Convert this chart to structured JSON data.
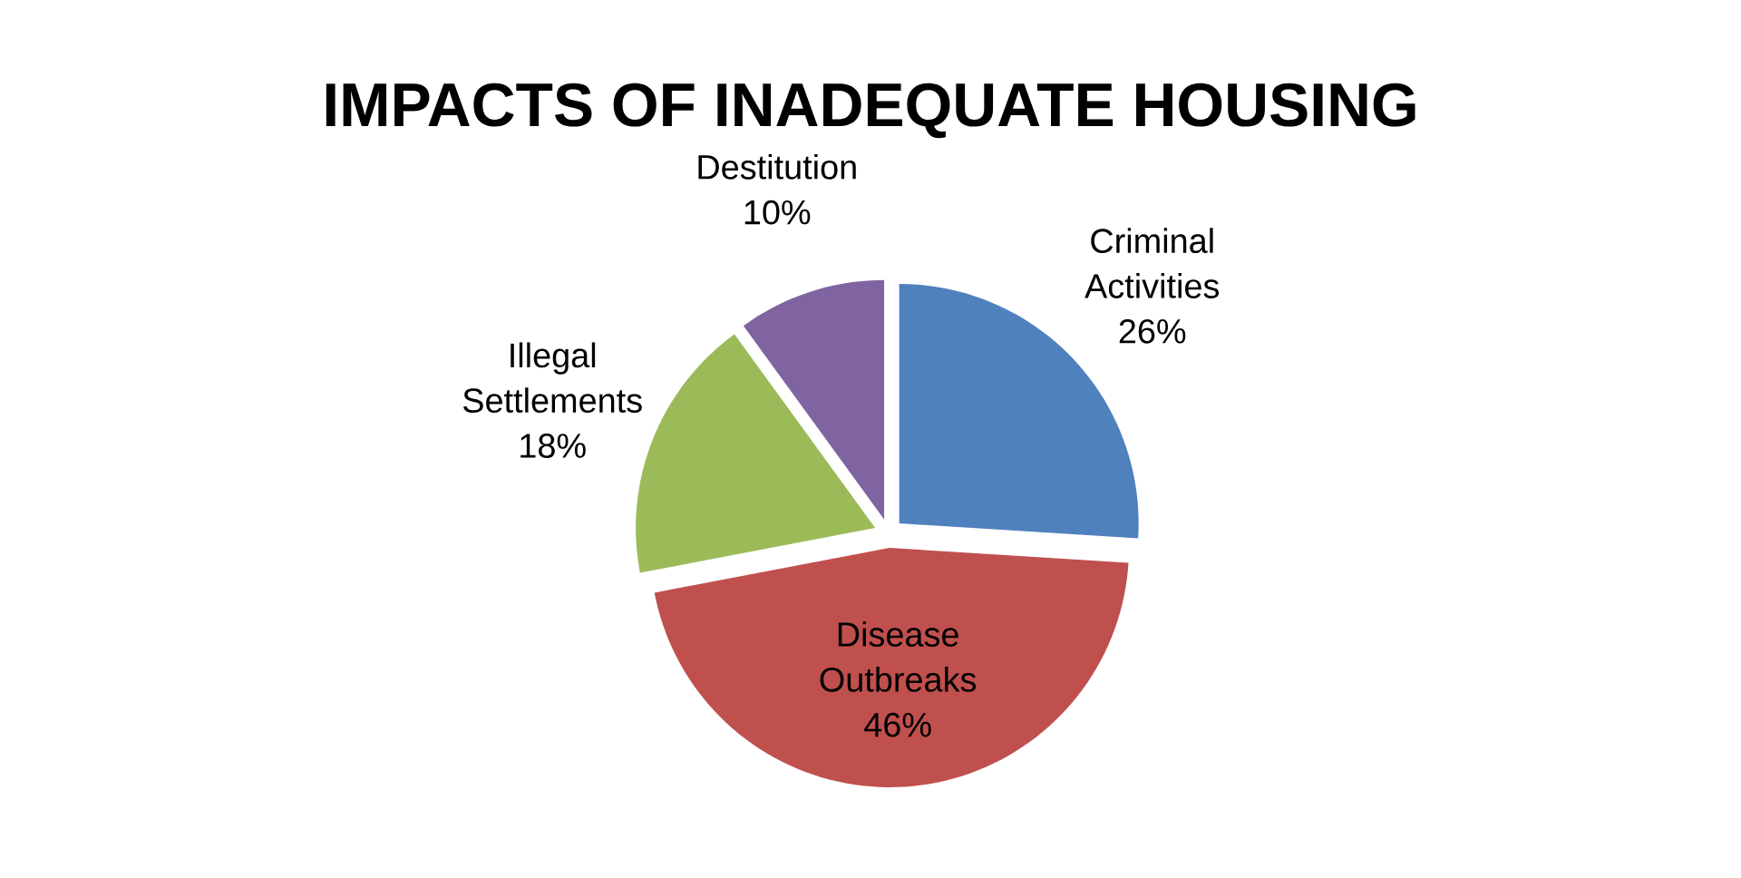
{
  "chart_data": {
    "type": "pie",
    "title": "IMPACTS OF INADEQUATE HOUSING",
    "categories": [
      "Criminal Activities",
      "Disease Outbreaks",
      "Illegal Settlements",
      "Destitution"
    ],
    "values": [
      26,
      46,
      18,
      10
    ],
    "colors": [
      "#4f81bd",
      "#c0504d",
      "#9bbb59",
      "#8064a2"
    ],
    "value_labels": [
      "26%",
      "46%",
      "18%",
      "10%"
    ]
  }
}
